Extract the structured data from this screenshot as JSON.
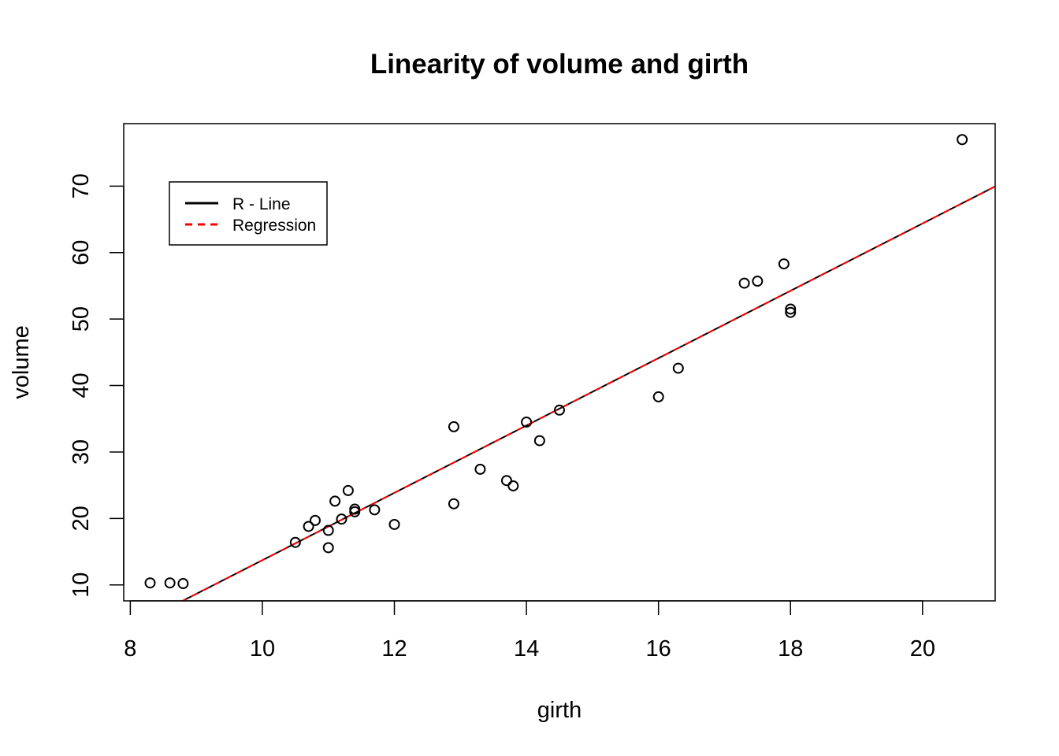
{
  "chart_data": {
    "type": "scatter",
    "title": "Linearity of volume and girth",
    "xlabel": "girth",
    "ylabel": "volume",
    "xlim": [
      7.9,
      21.1
    ],
    "ylim": [
      7.6,
      79.4
    ],
    "x_ticks": [
      8,
      10,
      12,
      14,
      16,
      18,
      20
    ],
    "y_ticks": [
      10,
      20,
      30,
      40,
      50,
      60,
      70
    ],
    "grid": false,
    "legend_position": "top-left",
    "points": {
      "x": [
        8.3,
        8.6,
        8.8,
        10.5,
        10.7,
        10.8,
        11.0,
        11.0,
        11.1,
        11.2,
        11.3,
        11.4,
        11.4,
        11.7,
        12.0,
        12.9,
        12.9,
        13.3,
        13.7,
        13.8,
        14.0,
        14.2,
        14.5,
        16.0,
        16.3,
        17.3,
        17.5,
        17.9,
        18.0,
        18.0,
        20.6
      ],
      "y": [
        10.3,
        10.3,
        10.2,
        16.4,
        18.8,
        19.7,
        15.6,
        18.2,
        22.6,
        19.9,
        24.2,
        21.0,
        21.4,
        21.3,
        19.1,
        22.2,
        33.8,
        27.4,
        25.7,
        24.9,
        34.5,
        31.7,
        36.3,
        38.3,
        42.6,
        55.4,
        55.7,
        58.3,
        51.5,
        51.0,
        77.0
      ]
    },
    "series": [
      {
        "name": "R - Line",
        "intercept": -36.94,
        "slope": 5.066,
        "color": "#000000",
        "dash": "solid"
      },
      {
        "name": "Regression",
        "intercept": -36.94,
        "slope": 5.066,
        "color": "#ff0000",
        "dash": "dashed"
      }
    ]
  }
}
